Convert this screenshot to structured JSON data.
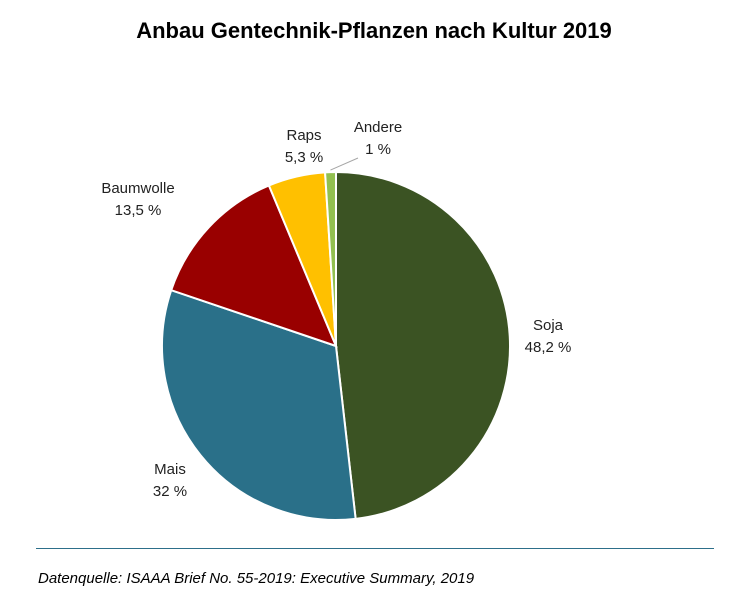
{
  "chart_data": {
    "type": "pie",
    "title": "Anbau Gentechnik-Pflanzen nach Kultur 2019",
    "slices": [
      {
        "name": "Soja",
        "value": 48.2,
        "label": "48,2 %",
        "color": "#3b5323"
      },
      {
        "name": "Mais",
        "value": 32,
        "label": "32 %",
        "color": "#2a7089"
      },
      {
        "name": "Baumwolle",
        "value": 13.5,
        "label": "13,5 %",
        "color": "#990000"
      },
      {
        "name": "Raps",
        "value": 5.3,
        "label": "5,3 %",
        "color": "#ffc000"
      },
      {
        "name": "Andere",
        "value": 1,
        "label": "1 %",
        "color": "#92c050"
      }
    ]
  },
  "source": "Datenquelle: ISAAA Brief No. 55-2019: Executive Summary, 2019"
}
